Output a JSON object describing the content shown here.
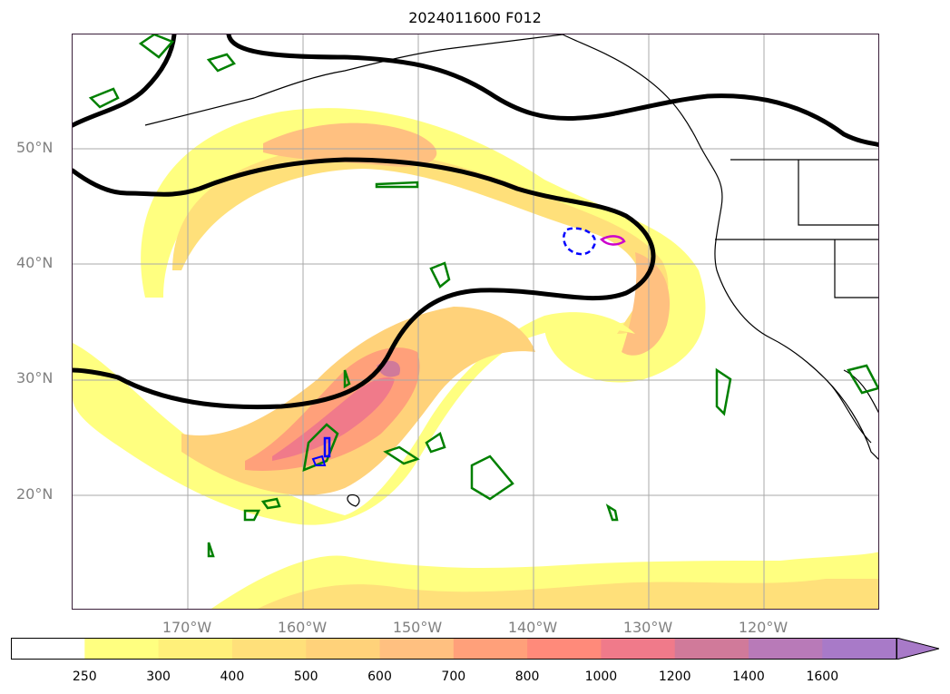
{
  "title": "2024011600 F012",
  "map": {
    "lat_labels": [
      "50°N",
      "40°N",
      "30°N",
      "20°N"
    ],
    "lon_labels": [
      "170°W",
      "160°W",
      "150°W",
      "140°W",
      "130°W",
      "120°W"
    ]
  },
  "legend": {
    "ticks": [
      "250",
      "300",
      "400",
      "500",
      "600",
      "700",
      "800",
      "1000",
      "1200",
      "1400",
      "1600"
    ],
    "colors": [
      "#ffffff",
      "#ffff80",
      "#fff07a",
      "#ffe07a",
      "#ffd27a",
      "#ffc080",
      "#ffa07a",
      "#ff8a7a",
      "#f07a8a",
      "#d07a9a",
      "#b87ab8",
      "#a87ac8"
    ],
    "extend": "max"
  },
  "contours": {
    "heavy_line_color": "#000000",
    "green_color": "#008000",
    "blue_color": "#0000ff",
    "magenta_color": "#cc00cc"
  }
}
